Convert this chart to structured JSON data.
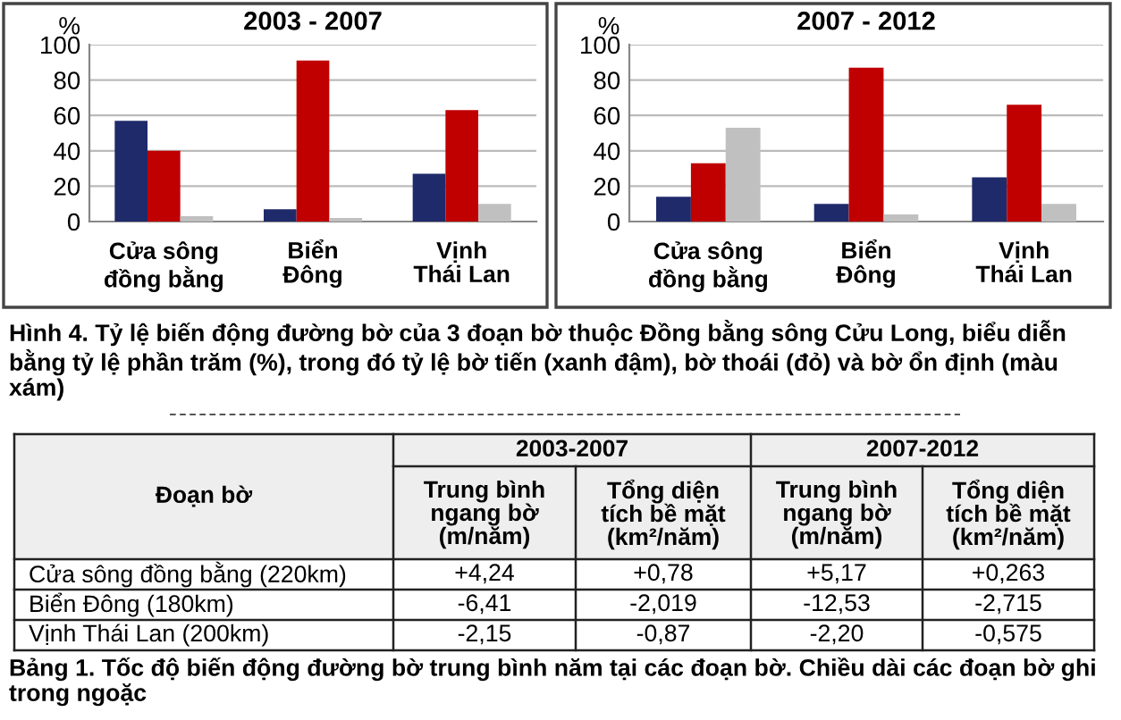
{
  "chart_data": [
    {
      "type": "bar",
      "title": "2003 - 2007",
      "ylabel": "%",
      "categories": [
        "Cửa sông\nđồng bằng",
        "Biển\nĐông",
        "Vịnh\nThái Lan"
      ],
      "series": [
        {
          "color": "#1f2a6b",
          "values": [
            57,
            7,
            27
          ]
        },
        {
          "color": "#c00000",
          "values": [
            40,
            91,
            63
          ]
        },
        {
          "color": "#c0c0c0",
          "values": [
            3,
            2,
            10
          ]
        }
      ],
      "ylim": [
        0,
        100
      ],
      "yticks": [
        0,
        20,
        40,
        60,
        80,
        100
      ],
      "grid": "y",
      "legend": false,
      "annotations": [
        "Hình 4. Tỷ lệ biến động đường bờ của 3 đoạn bờ thuộc Đồng bằng sông Cửu Long, biểu diễn bằng tỷ lệ phần trăm (%), trong đó tỷ lệ bờ tiến (xanh đậm), bờ thoái (đỏ) và bờ ổn định (màu xám)"
      ]
    },
    {
      "type": "bar",
      "title": "2007 - 2012",
      "ylabel": "%",
      "categories": [
        "Cửa sông\nđồng bằng",
        "Biển\nĐông",
        "Vịnh\nThái Lan"
      ],
      "series": [
        {
          "color": "#1f2a6b",
          "values": [
            14,
            10,
            25
          ]
        },
        {
          "color": "#c00000",
          "values": [
            33,
            87,
            66
          ]
        },
        {
          "color": "#c0c0c0",
          "values": [
            53,
            4,
            10
          ]
        }
      ],
      "ylim": [
        0,
        100
      ],
      "yticks": [
        0,
        20,
        40,
        60,
        80,
        100
      ],
      "grid": "y",
      "legend": false
    },
    {
      "type": "other",
      "annotations": [
        "Đoạn bờ",
        "2003-2007",
        "2007-2012",
        "Trung bình\nngang bờ\n(m/năm)",
        "Tổng diện\ntích bề mặt\n(km²/năm)",
        "Trung bình\nngang bờ\n(m/năm)",
        "Tổng diện\ntích bề mặt\n(km²/năm)",
        "Cửa sông đồng bằng (220km)",
        "+4,24",
        "+0,78",
        "+5,17",
        "+0,263",
        "Biển Đông (180km)",
        "-6,41",
        "-2,019",
        "-12,53",
        "-2,715",
        "Vịnh Thái Lan (200km)",
        "-2,15",
        "-0,87",
        "-2,20",
        "-0,575",
        "Bảng 1. Tốc độ biến động đường bờ trung bình năm tại các đoạn bờ. Chiều dài các đoạn bờ ghi trong ngoặc"
      ]
    }
  ]
}
